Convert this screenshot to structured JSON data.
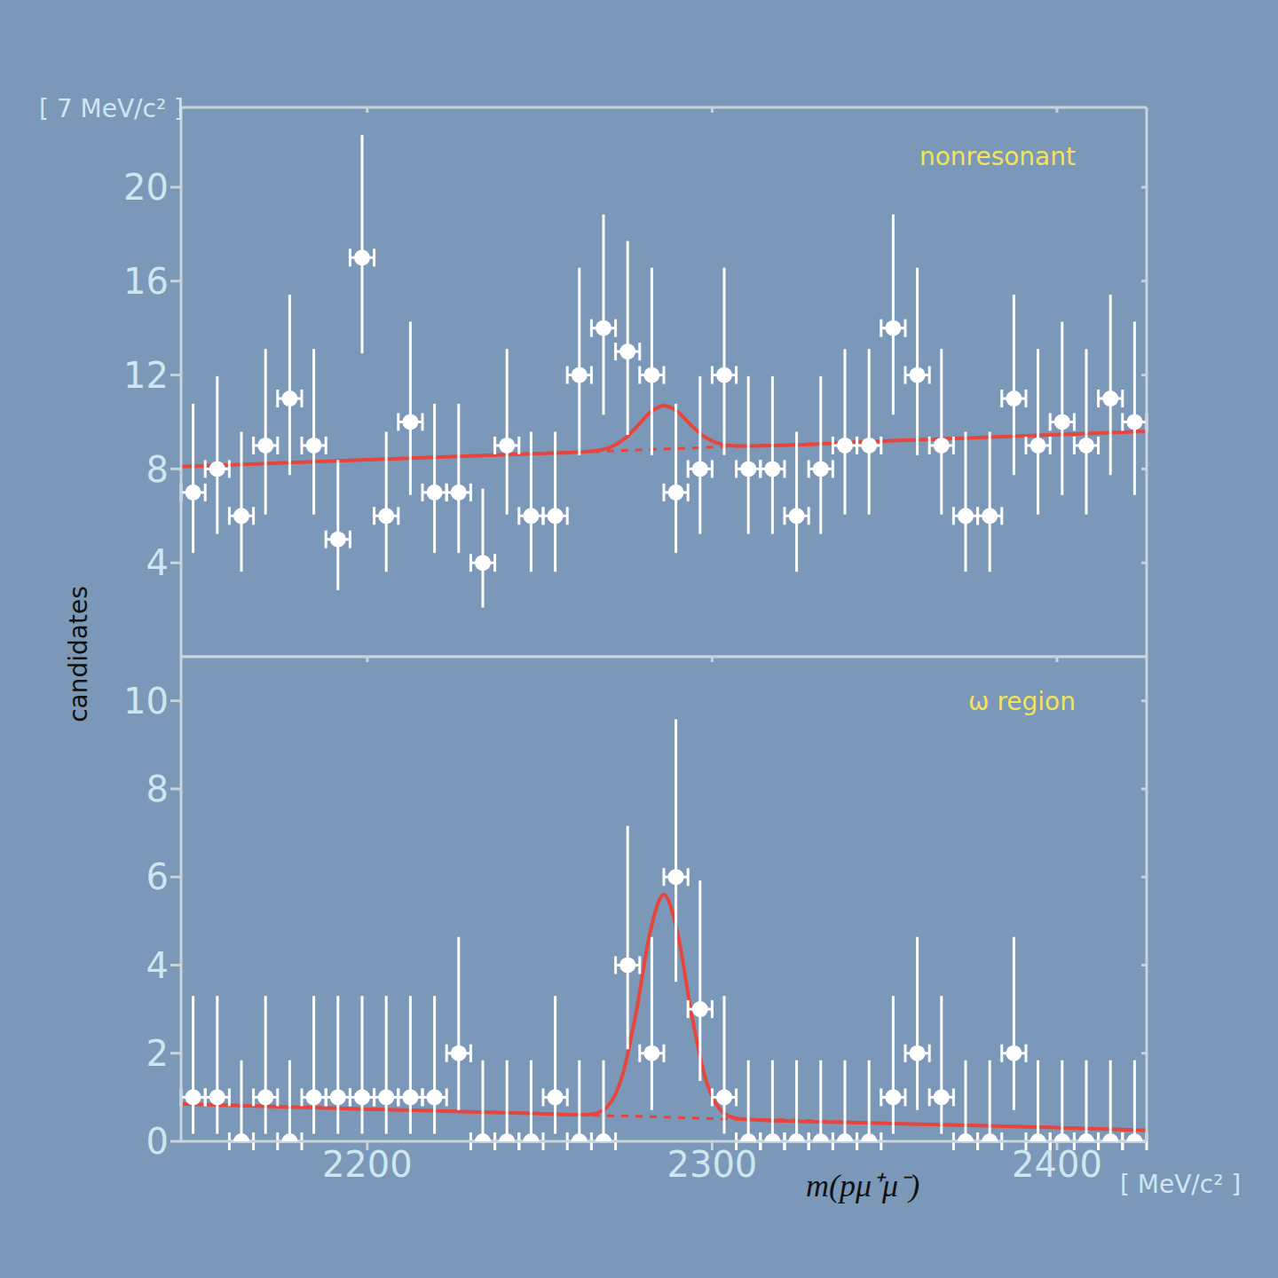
{
  "chart_data": [
    {
      "type": "scatter",
      "annotation": "nonresonant",
      "ylabel": "candidates",
      "ylabel_unit": "[ 7 MeV/c² ]",
      "xlim": [
        2146,
        2426
      ],
      "xticks": [
        2200,
        2300,
        2400
      ],
      "ylim": [
        0,
        23.4
      ],
      "yticks": [
        4,
        8,
        12,
        16,
        20
      ],
      "tick_labels": "y",
      "points": {
        "color": "#ffffff",
        "marker": "circle",
        "x_error": 3.5,
        "x": [
          2149.5,
          2156.5,
          2163.5,
          2170.5,
          2177.5,
          2184.5,
          2191.5,
          2198.5,
          2205.5,
          2212.5,
          2219.5,
          2226.5,
          2233.5,
          2240.5,
          2247.5,
          2254.5,
          2261.5,
          2268.5,
          2275.5,
          2282.5,
          2289.5,
          2296.5,
          2303.5,
          2310.5,
          2317.5,
          2324.5,
          2331.5,
          2338.5,
          2345.5,
          2352.5,
          2359.5,
          2366.5,
          2373.5,
          2380.5,
          2387.5,
          2394.5,
          2401.5,
          2408.5,
          2415.5,
          2422.5
        ],
        "values": [
          7,
          8,
          6,
          9,
          11,
          9,
          5,
          17,
          6,
          10,
          7,
          7,
          4,
          9,
          6,
          6,
          12,
          14,
          13,
          12,
          7,
          8,
          12,
          8,
          8,
          6,
          8,
          9,
          9,
          14,
          12,
          9,
          6,
          6,
          11,
          9,
          10,
          9,
          11,
          10
        ],
        "errors_low": [
          2.58,
          2.77,
          2.38,
          2.94,
          3.26,
          2.94,
          2.16,
          4.08,
          2.38,
          3.11,
          2.58,
          2.58,
          1.91,
          2.94,
          2.38,
          2.38,
          3.41,
          3.69,
          3.55,
          3.41,
          2.58,
          2.77,
          3.41,
          2.77,
          2.77,
          2.38,
          2.77,
          2.94,
          2.94,
          3.69,
          3.41,
          2.94,
          2.38,
          2.38,
          3.26,
          2.94,
          3.11,
          2.94,
          3.26,
          3.11
        ],
        "errors_high": [
          3.77,
          3.95,
          3.58,
          4.11,
          4.42,
          4.11,
          3.38,
          5.22,
          3.58,
          4.27,
          3.77,
          3.77,
          3.16,
          4.11,
          3.58,
          3.58,
          4.57,
          4.84,
          4.71,
          4.57,
          3.77,
          3.95,
          4.57,
          3.95,
          3.95,
          3.58,
          3.95,
          4.11,
          4.11,
          4.84,
          4.57,
          4.11,
          3.58,
          3.58,
          4.42,
          4.11,
          4.27,
          4.11,
          4.42,
          4.27
        ]
      },
      "fit": {
        "color": "#e8453c",
        "line_style": "solid",
        "x": [
          2146,
          2200,
          2250,
          2262,
          2266,
          2270,
          2274,
          2278,
          2282,
          2286,
          2290,
          2294,
          2298,
          2302,
          2306,
          2310,
          2350,
          2400,
          2426
        ],
        "values": [
          8.1,
          8.39,
          8.66,
          8.72,
          8.77,
          8.9,
          9.22,
          9.77,
          10.4,
          10.7,
          10.44,
          9.85,
          9.35,
          9.08,
          8.99,
          8.98,
          9.19,
          9.46,
          9.6
        ]
      },
      "background": {
        "color": "#e8453c",
        "line_style": "dashed",
        "x": [
          2146,
          2200,
          2250,
          2262,
          2266,
          2270,
          2274,
          2278,
          2282,
          2286,
          2290,
          2294,
          2298,
          2302,
          2306,
          2310,
          2350,
          2400,
          2426
        ],
        "values": [
          8.1,
          8.39,
          8.66,
          8.72,
          8.74,
          8.76,
          8.79,
          8.81,
          8.83,
          8.85,
          8.87,
          8.89,
          8.92,
          8.94,
          8.96,
          8.98,
          9.19,
          9.46,
          9.6
        ]
      }
    },
    {
      "type": "scatter",
      "annotation": "ω region",
      "xlabel": "m(pμ⁺μ⁻)",
      "xlabel_unit": "[ MeV/c² ]",
      "xlim": [
        2146,
        2426
      ],
      "xticks": [
        2200,
        2300,
        2400
      ],
      "ylim": [
        0,
        11
      ],
      "yticks": [
        0,
        2,
        4,
        6,
        8,
        10
      ],
      "points": {
        "color": "#ffffff",
        "marker": "circle",
        "x_error": 3.5,
        "x": [
          2149.5,
          2156.5,
          2163.5,
          2170.5,
          2177.5,
          2184.5,
          2191.5,
          2198.5,
          2205.5,
          2212.5,
          2219.5,
          2226.5,
          2233.5,
          2240.5,
          2247.5,
          2254.5,
          2261.5,
          2268.5,
          2275.5,
          2282.5,
          2289.5,
          2296.5,
          2303.5,
          2310.5,
          2317.5,
          2324.5,
          2331.5,
          2338.5,
          2345.5,
          2352.5,
          2359.5,
          2366.5,
          2373.5,
          2380.5,
          2387.5,
          2394.5,
          2401.5,
          2408.5,
          2415.5,
          2422.5
        ],
        "values": [
          1,
          1,
          0,
          1,
          0,
          1,
          1,
          1,
          1,
          1,
          1,
          2,
          0,
          0,
          0,
          1,
          0,
          0,
          4,
          2,
          6,
          3,
          1,
          0,
          0,
          0,
          0,
          0,
          0,
          1,
          2,
          1,
          0,
          0,
          2,
          0,
          0,
          0,
          0,
          0
        ],
        "errors_low": [
          0.83,
          0.83,
          0,
          0.83,
          0,
          0.83,
          0.83,
          0.83,
          0.83,
          0.83,
          0.83,
          1.29,
          0,
          0,
          0,
          0.83,
          0,
          0,
          1.91,
          1.29,
          2.38,
          1.63,
          0.83,
          0,
          0,
          0,
          0,
          0,
          0,
          0.83,
          1.29,
          0.83,
          0,
          0,
          1.29,
          0,
          0,
          0,
          0,
          0
        ],
        "errors_high": [
          2.3,
          2.3,
          1.84,
          2.3,
          1.84,
          2.3,
          2.3,
          2.3,
          2.3,
          2.3,
          2.3,
          2.64,
          1.84,
          1.84,
          1.84,
          2.3,
          1.84,
          1.84,
          3.16,
          2.64,
          3.58,
          2.92,
          2.3,
          1.84,
          1.84,
          1.84,
          1.84,
          1.84,
          1.84,
          2.3,
          2.64,
          2.3,
          1.84,
          1.84,
          2.64,
          1.84,
          1.84,
          1.84,
          1.84,
          1.84
        ]
      },
      "fit": {
        "color": "#e8453c",
        "line_style": "solid",
        "x": [
          2146,
          2200,
          2250,
          2262,
          2266,
          2270,
          2274,
          2278,
          2282,
          2286,
          2290,
          2294,
          2298,
          2302,
          2306,
          2310,
          2350,
          2400,
          2426
        ],
        "values": [
          0.85,
          0.73,
          0.63,
          0.6,
          0.63,
          0.82,
          1.5,
          2.94,
          4.74,
          5.6,
          4.72,
          2.9,
          1.44,
          0.75,
          0.54,
          0.5,
          0.41,
          0.31,
          0.25
        ]
      },
      "background": {
        "color": "#e8453c",
        "line_style": "dashed",
        "x": [
          2146,
          2200,
          2250,
          2262,
          2266,
          2270,
          2274,
          2278,
          2282,
          2286,
          2290,
          2294,
          2298,
          2302,
          2306,
          2310,
          2350,
          2400,
          2426
        ],
        "values": [
          0.85,
          0.73,
          0.63,
          0.6,
          0.59,
          0.58,
          0.58,
          0.57,
          0.56,
          0.55,
          0.54,
          0.53,
          0.52,
          0.51,
          0.5,
          0.5,
          0.41,
          0.31,
          0.25
        ]
      }
    }
  ]
}
